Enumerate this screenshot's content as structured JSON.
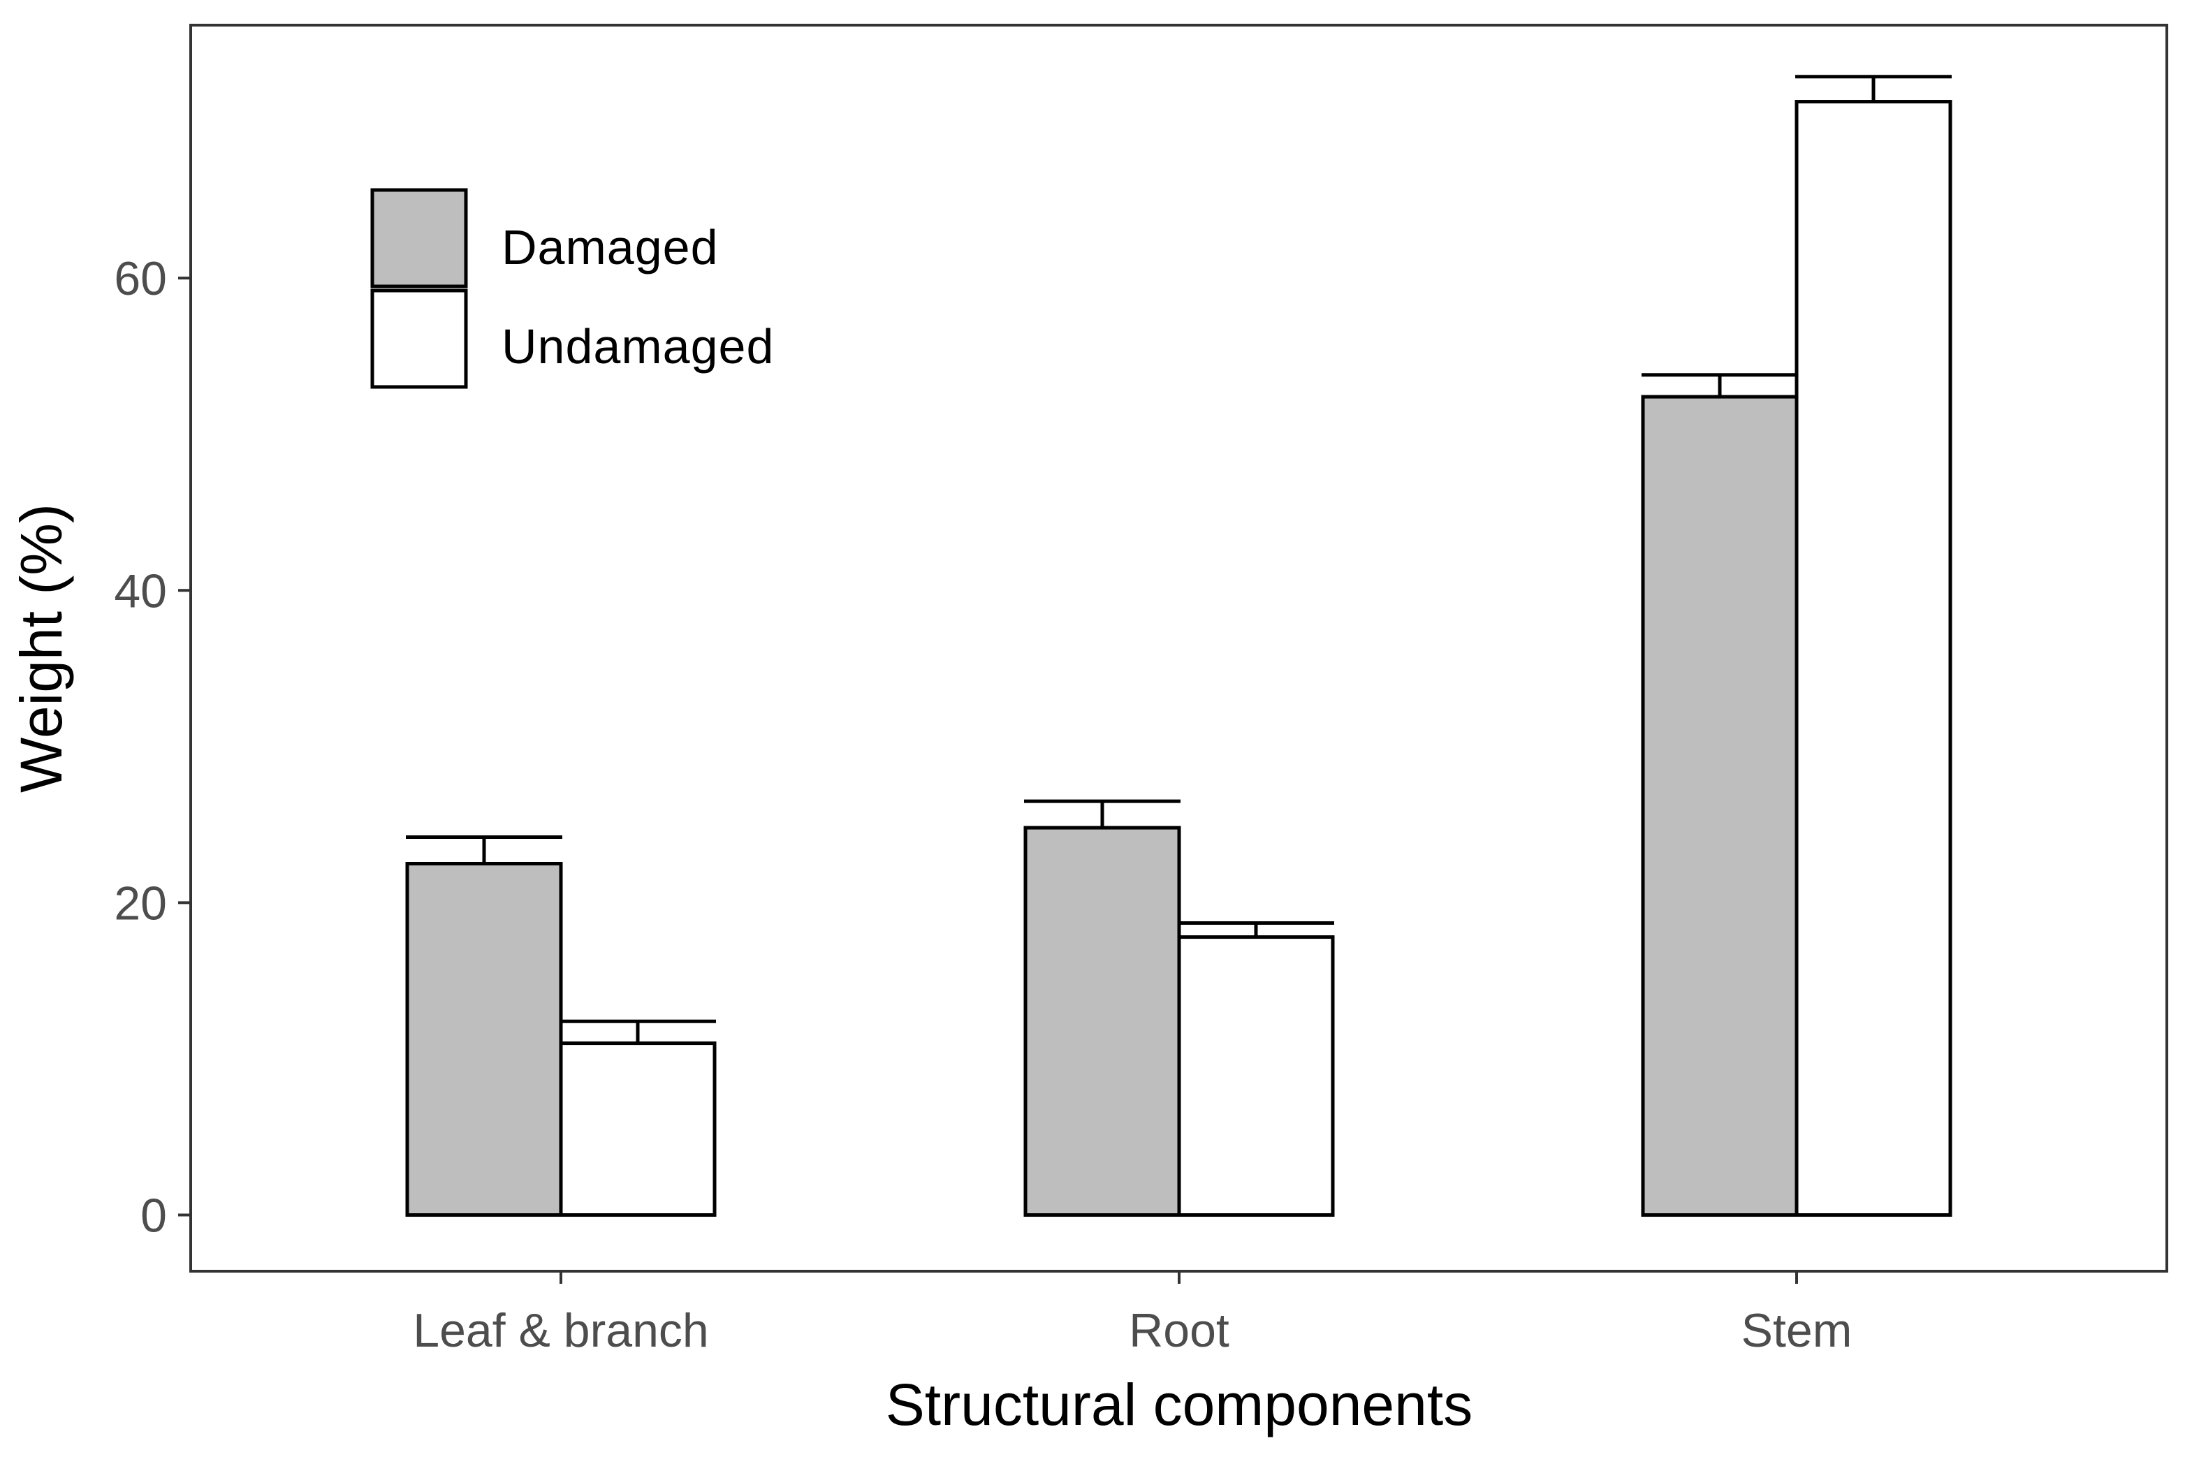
{
  "chart_data": {
    "type": "bar",
    "title": "",
    "xlabel": "Structural components",
    "ylabel": "Weight (%)",
    "categories": [
      "Leaf & branch",
      "Root",
      "Stem"
    ],
    "series": [
      {
        "name": "Damaged",
        "values": [
          22.5,
          24.8,
          52.4
        ],
        "errors": [
          1.7,
          1.7,
          1.4
        ],
        "color": "#bebebe"
      },
      {
        "name": "Undamaged",
        "values": [
          11.0,
          17.8,
          71.3
        ],
        "errors": [
          1.4,
          0.9,
          1.6
        ],
        "color": "#ffffff"
      }
    ],
    "ylim": [
      -3.6,
      76.2
    ],
    "yticks": [
      0,
      20,
      40,
      60
    ],
    "legend_position": "top-left",
    "grid": false
  },
  "colors": {
    "outline": "#000000",
    "panel_border": "#333333",
    "tick_text": "#4d4d4d"
  }
}
